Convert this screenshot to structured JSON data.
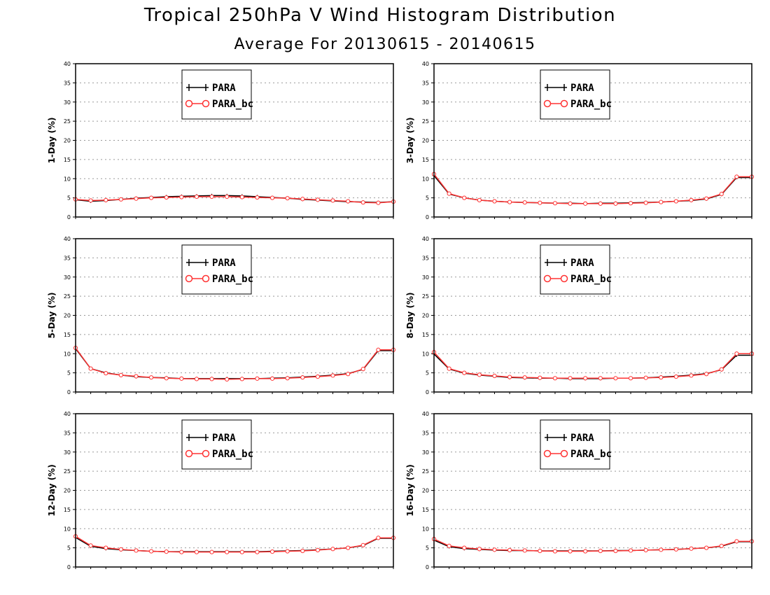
{
  "title": "Tropical 250hPa V Wind Histogram Distribution",
  "subtitle": "Average For 20130615 - 20140615",
  "colors": {
    "PARA": "#000000",
    "PARA_bc": "#ff3333",
    "grid": "#999999"
  },
  "legend": [
    "PARA",
    "PARA_bc"
  ],
  "chart_data": [
    {
      "type": "line",
      "ylabel": "1-Day (%)",
      "ylim": [
        0,
        40
      ],
      "yticks": [
        0,
        5,
        10,
        15,
        20,
        25,
        30,
        35,
        40
      ],
      "grid": true,
      "legend_position": "top-center",
      "x": [
        1,
        2,
        3,
        4,
        5,
        6,
        7,
        8,
        9,
        10,
        11,
        12,
        13,
        14,
        15,
        16,
        17,
        18,
        19,
        20,
        21,
        22
      ],
      "series": [
        {
          "name": "PARA",
          "values": [
            4.5,
            4.1,
            4.3,
            4.6,
            4.9,
            5.1,
            5.3,
            5.4,
            5.5,
            5.6,
            5.6,
            5.5,
            5.3,
            5.1,
            4.9,
            4.6,
            4.4,
            4.2,
            4.0,
            3.9,
            3.8,
            4.0
          ]
        },
        {
          "name": "PARA_bc",
          "values": [
            4.6,
            4.3,
            4.4,
            4.6,
            4.8,
            5.0,
            5.1,
            5.2,
            5.3,
            5.3,
            5.3,
            5.2,
            5.1,
            5.0,
            4.9,
            4.7,
            4.5,
            4.3,
            4.1,
            3.8,
            3.7,
            4.0
          ]
        }
      ]
    },
    {
      "type": "line",
      "ylabel": "3-Day (%)",
      "ylim": [
        0,
        40
      ],
      "yticks": [
        0,
        5,
        10,
        15,
        20,
        25,
        30,
        35,
        40
      ],
      "grid": true,
      "legend_position": "top-center",
      "x": [
        1,
        2,
        3,
        4,
        5,
        6,
        7,
        8,
        9,
        10,
        11,
        12,
        13,
        14,
        15,
        16,
        17,
        18,
        19,
        20,
        21,
        22
      ],
      "series": [
        {
          "name": "PARA",
          "values": [
            10.8,
            6.0,
            5.0,
            4.4,
            4.1,
            3.9,
            3.8,
            3.7,
            3.6,
            3.6,
            3.5,
            3.6,
            3.6,
            3.7,
            3.8,
            3.9,
            4.1,
            4.3,
            4.7,
            5.9,
            10.3,
            10.3
          ]
        },
        {
          "name": "PARA_bc",
          "values": [
            11.2,
            6.1,
            5.0,
            4.4,
            4.1,
            3.9,
            3.8,
            3.7,
            3.6,
            3.5,
            3.5,
            3.5,
            3.5,
            3.6,
            3.7,
            3.9,
            4.1,
            4.4,
            4.8,
            6.0,
            10.5,
            10.5
          ]
        }
      ]
    },
    {
      "type": "line",
      "ylabel": "5-Day (%)",
      "ylim": [
        0,
        40
      ],
      "yticks": [
        0,
        5,
        10,
        15,
        20,
        25,
        30,
        35,
        40
      ],
      "grid": true,
      "legend_position": "top-center",
      "x": [
        1,
        2,
        3,
        4,
        5,
        6,
        7,
        8,
        9,
        10,
        11,
        12,
        13,
        14,
        15,
        16,
        17,
        18,
        19,
        20,
        21,
        22
      ],
      "series": [
        {
          "name": "PARA",
          "values": [
            11.3,
            6.1,
            5.0,
            4.4,
            4.0,
            3.8,
            3.7,
            3.5,
            3.5,
            3.5,
            3.5,
            3.5,
            3.5,
            3.6,
            3.7,
            3.9,
            4.1,
            4.4,
            4.8,
            5.9,
            10.8,
            10.8
          ]
        },
        {
          "name": "PARA_bc",
          "values": [
            11.5,
            6.1,
            4.9,
            4.4,
            4.1,
            3.8,
            3.6,
            3.5,
            3.4,
            3.4,
            3.3,
            3.4,
            3.5,
            3.5,
            3.6,
            3.8,
            4.0,
            4.3,
            4.7,
            6.0,
            11.0,
            11.0
          ]
        }
      ]
    },
    {
      "type": "line",
      "ylabel": "8-Day (%)",
      "ylim": [
        0,
        40
      ],
      "yticks": [
        0,
        5,
        10,
        15,
        20,
        25,
        30,
        35,
        40
      ],
      "grid": true,
      "legend_position": "top-center",
      "x": [
        1,
        2,
        3,
        4,
        5,
        6,
        7,
        8,
        9,
        10,
        11,
        12,
        13,
        14,
        15,
        16,
        17,
        18,
        19,
        20,
        21,
        22
      ],
      "series": [
        {
          "name": "PARA",
          "values": [
            9.9,
            6.0,
            4.9,
            4.4,
            4.1,
            3.8,
            3.7,
            3.6,
            3.6,
            3.5,
            3.5,
            3.5,
            3.6,
            3.6,
            3.7,
            3.9,
            4.1,
            4.4,
            4.8,
            5.8,
            9.6,
            9.6
          ]
        },
        {
          "name": "PARA_bc",
          "values": [
            10.4,
            6.1,
            5.0,
            4.5,
            4.2,
            3.9,
            3.8,
            3.7,
            3.6,
            3.6,
            3.6,
            3.6,
            3.6,
            3.6,
            3.7,
            3.8,
            4.0,
            4.3,
            4.7,
            5.9,
            10.0,
            10.0
          ]
        }
      ]
    },
    {
      "type": "line",
      "ylabel": "12-Day (%)",
      "ylim": [
        0,
        40
      ],
      "yticks": [
        0,
        5,
        10,
        15,
        20,
        25,
        30,
        35,
        40
      ],
      "grid": true,
      "legend_position": "top-center",
      "x": [
        1,
        2,
        3,
        4,
        5,
        6,
        7,
        8,
        9,
        10,
        11,
        12,
        13,
        14,
        15,
        16,
        17,
        18,
        19,
        20,
        21,
        22
      ],
      "series": [
        {
          "name": "PARA",
          "values": [
            7.7,
            5.4,
            4.8,
            4.5,
            4.3,
            4.1,
            4.0,
            4.0,
            4.0,
            4.0,
            4.0,
            4.0,
            4.0,
            4.1,
            4.2,
            4.3,
            4.5,
            4.7,
            5.0,
            5.6,
            7.5,
            7.5
          ]
        },
        {
          "name": "PARA_bc",
          "values": [
            8.0,
            5.6,
            5.0,
            4.6,
            4.3,
            4.1,
            4.0,
            3.9,
            3.9,
            3.9,
            3.9,
            3.9,
            3.9,
            4.0,
            4.1,
            4.2,
            4.4,
            4.7,
            5.0,
            5.7,
            7.6,
            7.6
          ]
        }
      ]
    },
    {
      "type": "line",
      "ylabel": "16-Day (%)",
      "ylim": [
        0,
        40
      ],
      "yticks": [
        0,
        5,
        10,
        15,
        20,
        25,
        30,
        35,
        40
      ],
      "grid": true,
      "legend_position": "top-center",
      "x": [
        1,
        2,
        3,
        4,
        5,
        6,
        7,
        8,
        9,
        10,
        11,
        12,
        13,
        14,
        15,
        16,
        17,
        18,
        19,
        20,
        21,
        22
      ],
      "series": [
        {
          "name": "PARA",
          "values": [
            7.0,
            5.3,
            4.8,
            4.6,
            4.4,
            4.3,
            4.3,
            4.2,
            4.2,
            4.2,
            4.2,
            4.2,
            4.3,
            4.3,
            4.4,
            4.5,
            4.6,
            4.8,
            5.0,
            5.4,
            6.6,
            6.6
          ]
        },
        {
          "name": "PARA_bc",
          "values": [
            7.3,
            5.5,
            5.0,
            4.7,
            4.5,
            4.4,
            4.3,
            4.2,
            4.1,
            4.1,
            4.1,
            4.2,
            4.2,
            4.3,
            4.4,
            4.5,
            4.6,
            4.8,
            5.0,
            5.5,
            6.7,
            6.7
          ]
        }
      ]
    }
  ]
}
